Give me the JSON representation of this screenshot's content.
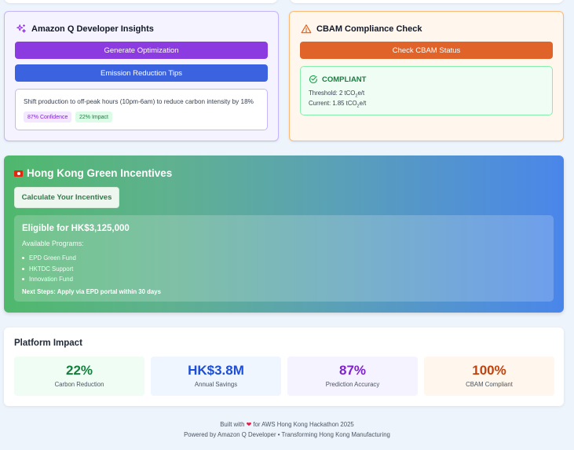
{
  "insights": {
    "title": "Amazon Q Developer Insights",
    "generate_btn": "Generate Optimization",
    "tips_btn": "Emission Reduction Tips",
    "tip_text": "Shift production to off-peak hours (10pm-6am) to reduce carbon intensity by 18%",
    "badge_confidence": "87% Confidence",
    "badge_impact": "22% Impact"
  },
  "cbam": {
    "title": "CBAM Compliance Check",
    "check_btn": "Check CBAM Status",
    "status": "COMPLIANT",
    "threshold_label": "Threshold: 2 tCO",
    "current_label": "Current: 1.85 tCO",
    "sub_2": "2",
    "unit_suffix": "e/t"
  },
  "incentives": {
    "title": "Hong Kong Green Incentives",
    "calc_btn": "Calculate Your Incentives",
    "eligible": "Eligible for HK$3,125,000",
    "available_label": "Available Programs:",
    "programs": [
      "EPD Green Fund",
      "HKTDC Support",
      "Innovation Fund"
    ],
    "next_steps": "Next Steps: Apply via EPD portal within 30 days"
  },
  "impact": {
    "title": "Platform Impact",
    "stats": [
      {
        "value": "22%",
        "label": "Carbon Reduction",
        "color": "#15803d",
        "bg": "#f0fdf4"
      },
      {
        "value": "HK$3.8M",
        "label": "Annual Savings",
        "color": "#1d4ed8",
        "bg": "#eff6ff"
      },
      {
        "value": "87%",
        "label": "Prediction Accuracy",
        "color": "#7e22ce",
        "bg": "#f5f3ff"
      },
      {
        "value": "100%",
        "label": "CBAM Compliant",
        "color": "#c2410c",
        "bg": "#fff7ed"
      }
    ]
  },
  "footer": {
    "line1_pre": "Built with",
    "line1_post": "for AWS Hong Kong Hackathon 2025",
    "line2": "Powered by Amazon Q Developer • Transforming Hong Kong Manufacturing"
  }
}
